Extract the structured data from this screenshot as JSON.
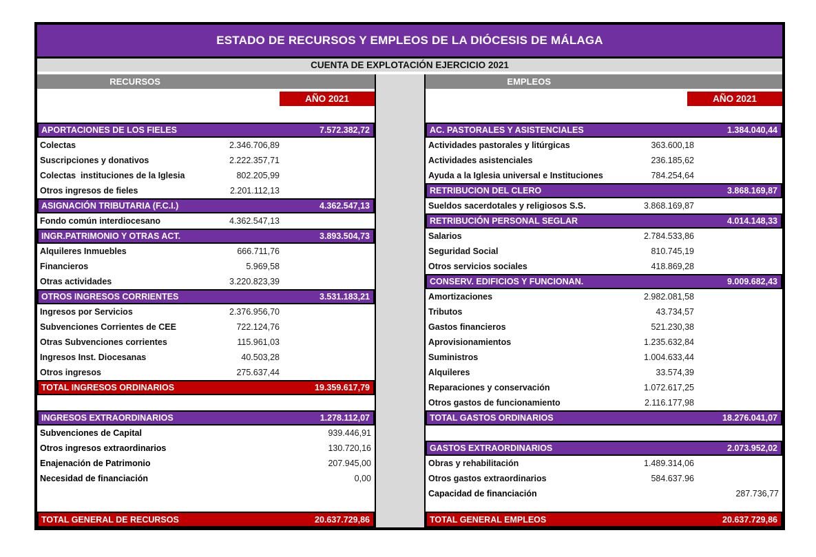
{
  "title": "ESTADO DE RECURSOS Y EMPLEOS DE LA DIÓCESIS DE MÁLAGA",
  "subtitle": "CUENTA DE EXPLOTACIÓN EJERCICIO 2021",
  "year_label": "AÑO 2021",
  "colors": {
    "purple": "#7030A0",
    "dark_red": "#C00000",
    "header_gray": "#898989",
    "light_gray": "#D9D9D9",
    "border_black": "#000000"
  },
  "recursos": {
    "header": "RECURSOS",
    "rows": [
      {
        "type": "section",
        "label": "APORTACIONES DE LOS FIELES",
        "value": "7.572.382,72"
      },
      {
        "type": "detail",
        "label": "Colectas",
        "value": "2.346.706,89"
      },
      {
        "type": "detail",
        "label": "Suscripciones y donativos",
        "value": "2.222.357,71"
      },
      {
        "type": "detail",
        "label": "Colectas  instituciones de la Iglesia",
        "value": "802.205,99"
      },
      {
        "type": "detail",
        "label": "Otros ingresos de fieles",
        "value": "2.201.112,13"
      },
      {
        "type": "section",
        "label": "ASIGNACIÓN TRIBUTARIA (F.C.I.)",
        "value": "4.362.547,13"
      },
      {
        "type": "detail",
        "label": "Fondo común interdiocesano",
        "value": "4.362.547,13"
      },
      {
        "type": "section",
        "label": "INGR.PATRIMONIO Y OTRAS ACT.",
        "value": "3.893.504,73"
      },
      {
        "type": "detail",
        "label": "Alquileres Inmuebles",
        "value": "666.711,76"
      },
      {
        "type": "detail",
        "label": "Financieros",
        "value": "5.969,58"
      },
      {
        "type": "detail",
        "label": "Otras actividades",
        "value": "3.220.823,39"
      },
      {
        "type": "section",
        "label": "OTROS INGRESOS CORRIENTES",
        "value": "3.531.183,21"
      },
      {
        "type": "detail",
        "label": "Ingresos por Servicios",
        "value": "2.376.956,70"
      },
      {
        "type": "detail",
        "label": "Subvenciones Corrientes de CEE",
        "value": "722.124,76"
      },
      {
        "type": "detail",
        "label": "Otras Subvenciones corrientes",
        "value": "115.961,03"
      },
      {
        "type": "detail",
        "label": "Ingresos Inst. Diocesanas",
        "value": "40.503,28"
      },
      {
        "type": "detail",
        "label": "Otros ingresos",
        "value": "275.637,44"
      },
      {
        "type": "total_red",
        "label": "TOTAL INGRESOS ORDINARIOS",
        "value": "19.359.617,79"
      },
      {
        "type": "spacer"
      },
      {
        "type": "section",
        "label": "INGRESOS EXTRAORDINARIOS",
        "value": "1.278.112,07"
      },
      {
        "type": "detail_ano",
        "label": "Subvenciones de Capital",
        "value": "939.446,91"
      },
      {
        "type": "detail_ano",
        "label": "Otros ingresos extraordinarios",
        "value": "130.720,16"
      },
      {
        "type": "detail_ano",
        "label": "Enajenación de Patrimonio",
        "value": "207.945,00"
      },
      {
        "type": "detail_ano",
        "label": "Necesidad de financiación",
        "value": "0,00"
      }
    ],
    "footer": {
      "type": "total_red",
      "label": "TOTAL GENERAL DE RECURSOS",
      "value": "20.637.729,86"
    }
  },
  "empleos": {
    "header": "EMPLEOS",
    "rows": [
      {
        "type": "section",
        "label": "AC. PASTORALES Y ASISTENCIALES",
        "value": "1.384.040,44"
      },
      {
        "type": "detail",
        "label": "Actividades pastorales y litúrgicas",
        "value": "363.600,18"
      },
      {
        "type": "detail",
        "label": "Actividades asistenciales",
        "value": "236.185,62"
      },
      {
        "type": "detail",
        "label": "Ayuda a la Iglesia universal e Instituciones",
        "value": "784.254,64"
      },
      {
        "type": "section",
        "label": "RETRIBUCION DEL CLERO",
        "value": "3.868.169,87"
      },
      {
        "type": "detail",
        "label": "Sueldos sacerdotales y religiosos S.S.",
        "value": "3.868.169,87"
      },
      {
        "type": "section",
        "label": "RETRIBUCIÓN PERSONAL SEGLAR",
        "value": "4.014.148,33"
      },
      {
        "type": "detail",
        "label": "Salarios",
        "value": "2.784.533,86"
      },
      {
        "type": "detail",
        "label": "Seguridad Social",
        "value": "810.745,19"
      },
      {
        "type": "detail",
        "label": "Otros servicios sociales",
        "value": "418.869,28"
      },
      {
        "type": "section",
        "label": "CONSERV. EDIFICIOS Y FUNCIONAN.",
        "value": "9.009.682,43"
      },
      {
        "type": "detail",
        "label": "Amortizaciones",
        "value": "2.982.081,58"
      },
      {
        "type": "detail",
        "label": "Tributos",
        "value": "43.734,57"
      },
      {
        "type": "detail",
        "label": "Gastos financieros",
        "value": "521.230,38"
      },
      {
        "type": "detail",
        "label": "Aprovisionamientos",
        "value": "1.235.632,84"
      },
      {
        "type": "detail",
        "label": "Suministros",
        "value": "1.004.633,44"
      },
      {
        "type": "detail",
        "label": "Alquileres",
        "value": "33.574,39"
      },
      {
        "type": "detail",
        "label": "Reparaciones y conservación",
        "value": "1.072.617,25"
      },
      {
        "type": "detail",
        "label": "Otros gastos de funcionamiento",
        "value": "2.116.177,98"
      },
      {
        "type": "total_purple",
        "label": "TOTAL GASTOS ORDINARIOS",
        "value": "18.276.041,07"
      },
      {
        "type": "spacer"
      },
      {
        "type": "section",
        "label": "GASTOS EXTRAORDINARIOS",
        "value": "2.073.952,02"
      },
      {
        "type": "detail",
        "label": "Obras y rehabilitación",
        "value": "1.489.314,06"
      },
      {
        "type": "detail",
        "label": "Otros gastos extraordinarios",
        "value": "584.637.96"
      },
      {
        "type": "detail_ano",
        "label": "Capacidad de financiación",
        "value": "287.736,77"
      }
    ],
    "footer": {
      "type": "total_red",
      "label": "TOTAL GENERAL EMPLEOS",
      "value": "20.637.729,86"
    }
  }
}
